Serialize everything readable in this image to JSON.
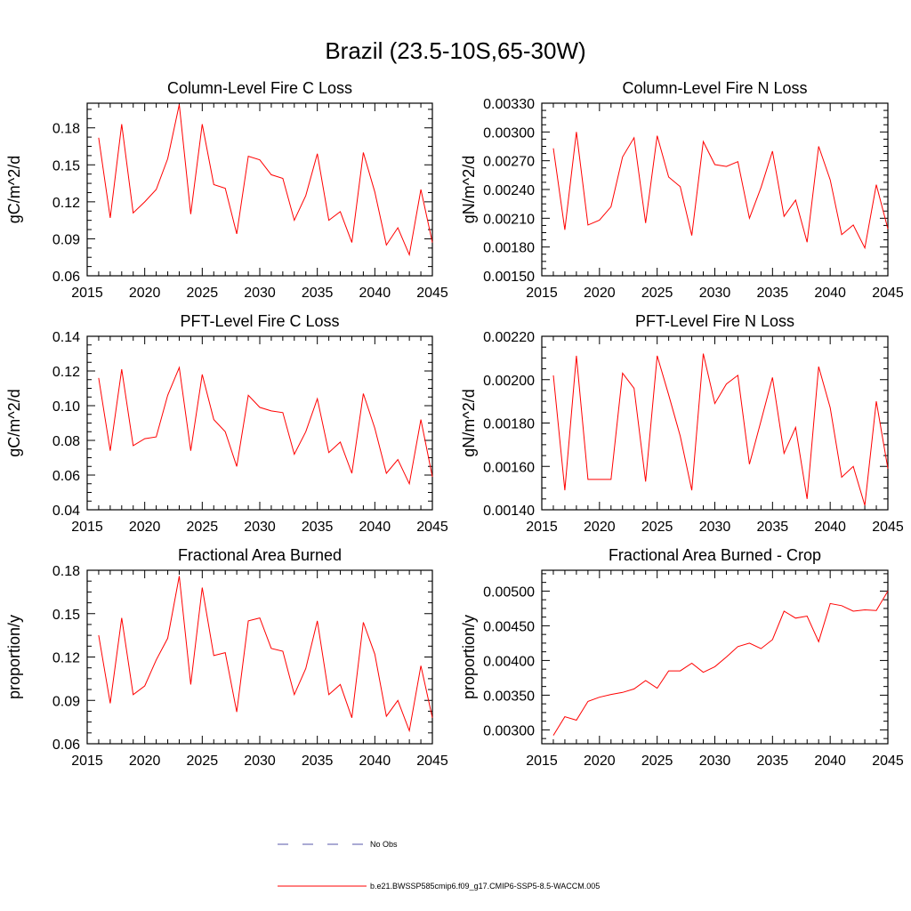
{
  "title": "Brazil (23.5-10S,65-30W)",
  "legend": [
    {
      "label": "No Obs",
      "color": "#5555aa",
      "dash": true
    },
    {
      "label": "b.e21.BWSSP585cmip6.f09_g17.CMIP6-SSP5-8.5-WACCM.005",
      "color": "#ff0000",
      "dash": false
    }
  ],
  "chart_data": [
    {
      "type": "line",
      "title": "Column-Level Fire C Loss",
      "xlabel": "",
      "ylabel": "gC/m^2/d",
      "xlim": [
        2015,
        2045
      ],
      "ylim": [
        0.06,
        0.2
      ],
      "xticks": [
        2015,
        2020,
        2025,
        2030,
        2035,
        2040,
        2045
      ],
      "yticks": [
        0.06,
        0.09,
        0.12,
        0.15,
        0.18
      ],
      "ytick_labels": [
        "0.06",
        "0.09",
        "0.12",
        "0.15",
        "0.18"
      ],
      "x": [
        2016,
        2017,
        2018,
        2019,
        2020,
        2021,
        2022,
        2023,
        2024,
        2025,
        2026,
        2027,
        2028,
        2029,
        2030,
        2031,
        2032,
        2033,
        2034,
        2035,
        2036,
        2037,
        2038,
        2039,
        2040,
        2041,
        2042,
        2043,
        2044,
        2045
      ],
      "series": [
        {
          "name": "b.e21.BWSSP585cmip6.f09_g17.CMIP6-SSP5-8.5-WACCM.005",
          "color": "#ff0000",
          "values": [
            0.172,
            0.107,
            0.183,
            0.111,
            0.12,
            0.13,
            0.155,
            0.199,
            0.11,
            0.183,
            0.134,
            0.131,
            0.094,
            0.157,
            0.154,
            0.142,
            0.139,
            0.105,
            0.125,
            0.159,
            0.105,
            0.112,
            0.087,
            0.16,
            0.128,
            0.085,
            0.099,
            0.077,
            0.13,
            0.087
          ]
        }
      ]
    },
    {
      "type": "line",
      "title": "Column-Level Fire N Loss",
      "xlabel": "",
      "ylabel": "gN/m^2/d",
      "xlim": [
        2015,
        2045
      ],
      "ylim": [
        0.0015,
        0.0033
      ],
      "xticks": [
        2015,
        2020,
        2025,
        2030,
        2035,
        2040,
        2045
      ],
      "yticks": [
        0.0015,
        0.0018,
        0.0021,
        0.0024,
        0.0027,
        0.003,
        0.0033
      ],
      "ytick_labels": [
        "0.00150",
        "0.00180",
        "0.00210",
        "0.00240",
        "0.00270",
        "0.00300",
        "0.00330"
      ],
      "x": [
        2016,
        2017,
        2018,
        2019,
        2020,
        2021,
        2022,
        2023,
        2024,
        2025,
        2026,
        2027,
        2028,
        2029,
        2030,
        2031,
        2032,
        2033,
        2034,
        2035,
        2036,
        2037,
        2038,
        2039,
        2040,
        2041,
        2042,
        2043,
        2044,
        2045
      ],
      "series": [
        {
          "name": "b.e21.BWSSP585cmip6.f09_g17.CMIP6-SSP5-8.5-WACCM.005",
          "color": "#ff0000",
          "values": [
            0.00283,
            0.00198,
            0.003,
            0.00203,
            0.00208,
            0.00222,
            0.00274,
            0.00294,
            0.00205,
            0.00296,
            0.00253,
            0.00243,
            0.00192,
            0.0029,
            0.00266,
            0.00264,
            0.00269,
            0.0021,
            0.00242,
            0.0028,
            0.00212,
            0.00229,
            0.00185,
            0.00285,
            0.0025,
            0.00193,
            0.00203,
            0.00179,
            0.00245,
            0.00199
          ]
        }
      ]
    },
    {
      "type": "line",
      "title": "PFT-Level Fire C Loss",
      "xlabel": "",
      "ylabel": "gC/m^2/d",
      "xlim": [
        2015,
        2045
      ],
      "ylim": [
        0.04,
        0.14
      ],
      "xticks": [
        2015,
        2020,
        2025,
        2030,
        2035,
        2040,
        2045
      ],
      "yticks": [
        0.04,
        0.06,
        0.08,
        0.1,
        0.12,
        0.14
      ],
      "ytick_labels": [
        "0.04",
        "0.06",
        "0.08",
        "0.10",
        "0.12",
        "0.14"
      ],
      "x": [
        2016,
        2017,
        2018,
        2019,
        2020,
        2021,
        2022,
        2023,
        2024,
        2025,
        2026,
        2027,
        2028,
        2029,
        2030,
        2031,
        2032,
        2033,
        2034,
        2035,
        2036,
        2037,
        2038,
        2039,
        2040,
        2041,
        2042,
        2043,
        2044,
        2045
      ],
      "series": [
        {
          "name": "b.e21.BWSSP585cmip6.f09_g17.CMIP6-SSP5-8.5-WACCM.005",
          "color": "#ff0000",
          "values": [
            0.116,
            0.074,
            0.121,
            0.077,
            0.081,
            0.082,
            0.106,
            0.122,
            0.074,
            0.118,
            0.092,
            0.085,
            0.065,
            0.106,
            0.099,
            0.097,
            0.096,
            0.072,
            0.085,
            0.104,
            0.073,
            0.079,
            0.061,
            0.107,
            0.087,
            0.061,
            0.069,
            0.055,
            0.092,
            0.059
          ]
        }
      ]
    },
    {
      "type": "line",
      "title": "PFT-Level Fire N Loss",
      "xlabel": "",
      "ylabel": "gN/m^2/d",
      "xlim": [
        2015,
        2045
      ],
      "ylim": [
        0.0014,
        0.0022
      ],
      "xticks": [
        2015,
        2020,
        2025,
        2030,
        2035,
        2040,
        2045
      ],
      "yticks": [
        0.0014,
        0.0016,
        0.0018,
        0.002,
        0.0022
      ],
      "ytick_labels": [
        "0.00140",
        "0.00160",
        "0.00180",
        "0.00200",
        "0.00220"
      ],
      "x": [
        2016,
        2017,
        2018,
        2019,
        2020,
        2021,
        2022,
        2023,
        2024,
        2025,
        2026,
        2027,
        2028,
        2029,
        2030,
        2031,
        2032,
        2033,
        2034,
        2035,
        2036,
        2037,
        2038,
        2039,
        2040,
        2041,
        2042,
        2043,
        2044,
        2045
      ],
      "series": [
        {
          "name": "b.e21.BWSSP585cmip6.f09_g17.CMIP6-SSP5-8.5-WACCM.005",
          "color": "#ff0000",
          "values": [
            0.00202,
            0.00149,
            0.00211,
            0.00154,
            0.00154,
            0.00154,
            0.00203,
            0.00196,
            0.00153,
            0.00211,
            0.00193,
            0.00174,
            0.00149,
            0.00212,
            0.00189,
            0.00198,
            0.00202,
            0.00161,
            0.00181,
            0.00201,
            0.00166,
            0.00178,
            0.00145,
            0.00206,
            0.00187,
            0.00155,
            0.0016,
            0.00142,
            0.0019,
            0.00159
          ]
        }
      ]
    },
    {
      "type": "line",
      "title": "Fractional Area Burned",
      "xlabel": "",
      "ylabel": "proportion/y",
      "xlim": [
        2015,
        2045
      ],
      "ylim": [
        0.06,
        0.18
      ],
      "xticks": [
        2015,
        2020,
        2025,
        2030,
        2035,
        2040,
        2045
      ],
      "yticks": [
        0.06,
        0.09,
        0.12,
        0.15,
        0.18
      ],
      "ytick_labels": [
        "0.06",
        "0.09",
        "0.12",
        "0.15",
        "0.18"
      ],
      "x": [
        2016,
        2017,
        2018,
        2019,
        2020,
        2021,
        2022,
        2023,
        2024,
        2025,
        2026,
        2027,
        2028,
        2029,
        2030,
        2031,
        2032,
        2033,
        2034,
        2035,
        2036,
        2037,
        2038,
        2039,
        2040,
        2041,
        2042,
        2043,
        2044,
        2045
      ],
      "series": [
        {
          "name": "b.e21.BWSSP585cmip6.f09_g17.CMIP6-SSP5-8.5-WACCM.005",
          "color": "#ff0000",
          "values": [
            0.135,
            0.088,
            0.147,
            0.094,
            0.1,
            0.118,
            0.133,
            0.176,
            0.101,
            0.168,
            0.121,
            0.123,
            0.082,
            0.145,
            0.147,
            0.126,
            0.124,
            0.094,
            0.112,
            0.145,
            0.094,
            0.101,
            0.078,
            0.144,
            0.122,
            0.079,
            0.09,
            0.069,
            0.114,
            0.078
          ]
        }
      ]
    },
    {
      "type": "line",
      "title": "Fractional Area Burned - Crop",
      "xlabel": "",
      "ylabel": "proportion/y",
      "xlim": [
        2015,
        2045
      ],
      "ylim": [
        0.0028,
        0.0053
      ],
      "xticks": [
        2015,
        2020,
        2025,
        2030,
        2035,
        2040,
        2045
      ],
      "yticks": [
        0.003,
        0.0035,
        0.004,
        0.0045,
        0.005
      ],
      "ytick_labels": [
        "0.00300",
        "0.00350",
        "0.00400",
        "0.00450",
        "0.00500"
      ],
      "x": [
        2016,
        2017,
        2018,
        2019,
        2020,
        2021,
        2022,
        2023,
        2024,
        2025,
        2026,
        2027,
        2028,
        2029,
        2030,
        2031,
        2032,
        2033,
        2034,
        2035,
        2036,
        2037,
        2038,
        2039,
        2040,
        2041,
        2042,
        2043,
        2044,
        2045
      ],
      "series": [
        {
          "name": "b.e21.BWSSP585cmip6.f09_g17.CMIP6-SSP5-8.5-WACCM.005",
          "color": "#ff0000",
          "values": [
            0.00292,
            0.00319,
            0.00314,
            0.00341,
            0.00347,
            0.00351,
            0.00354,
            0.00359,
            0.00371,
            0.0036,
            0.00385,
            0.00385,
            0.00396,
            0.00383,
            0.00391,
            0.00405,
            0.0042,
            0.00425,
            0.00417,
            0.0043,
            0.00471,
            0.00461,
            0.00464,
            0.00427,
            0.00482,
            0.00479,
            0.00471,
            0.00473,
            0.00472,
            0.005
          ]
        }
      ]
    }
  ]
}
